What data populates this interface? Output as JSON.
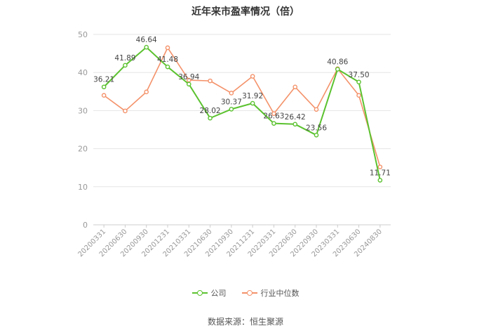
{
  "title": "近年来市盈率情况（倍）",
  "source": "数据来源：恒生聚源",
  "colors": {
    "company": "#5bc22f",
    "industry": "#f4926a",
    "grid": "#e6e6e6",
    "axis": "#999999"
  },
  "chart_data": {
    "type": "line",
    "categories": [
      "20200331",
      "20200630",
      "20200930",
      "20201231",
      "20210331",
      "20210630",
      "20210930",
      "20211231",
      "20220331",
      "20220630",
      "20220930",
      "20230331",
      "20230630",
      "20240830"
    ],
    "ylim": [
      0,
      50
    ],
    "yticks": [
      0,
      10,
      20,
      30,
      40,
      50
    ],
    "ytick_labels": [
      "0",
      "10",
      "20",
      "30",
      "40",
      "50"
    ],
    "grid": true,
    "legend_position": "bottom",
    "series": [
      {
        "name": "公司",
        "values": [
          36.21,
          41.89,
          46.64,
          41.48,
          36.94,
          28.02,
          30.37,
          31.92,
          26.63,
          26.42,
          23.56,
          40.86,
          37.5,
          11.71
        ],
        "labels": [
          "36.21",
          "41.89",
          "46.64",
          "41.48",
          "36.94",
          "28.02",
          "30.37",
          "31.92",
          "26.63",
          "26.42",
          "23.56",
          "40.86",
          "37.50",
          "11.71"
        ]
      },
      {
        "name": "行业中位数",
        "values": [
          34.0,
          29.9,
          34.9,
          46.5,
          38.0,
          37.8,
          34.6,
          39.0,
          29.2,
          36.2,
          30.3,
          41.0,
          34.0,
          15.2
        ]
      }
    ]
  }
}
